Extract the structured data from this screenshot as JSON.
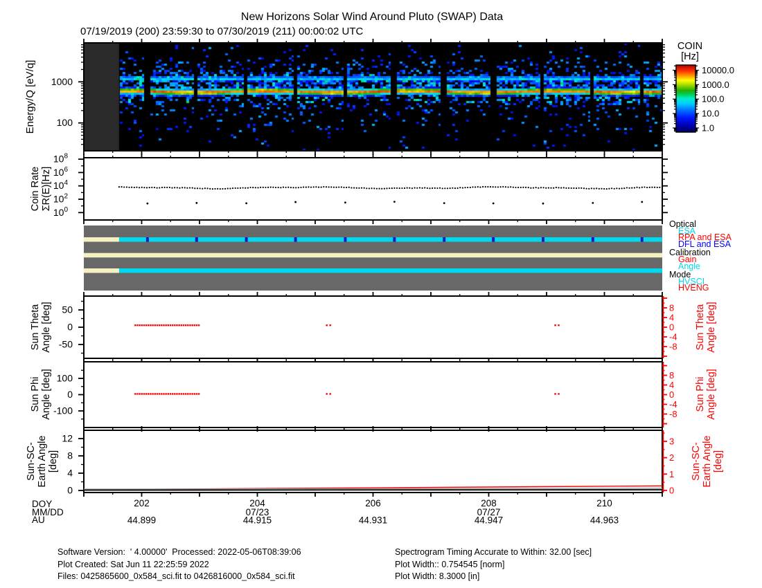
{
  "title": "New Horizons Solar Wind Around Pluto (SWAP) Data",
  "subtitle": "07/19/2019 (200) 23:59:30 to 07/30/2019 (211) 00:00:02 UTC",
  "colors": {
    "red": "#ff0000",
    "cyan": "#00d8ee",
    "blue": "#0000ff",
    "dark_blue_mark": "#1a1acc",
    "cream": "#f4f0bf",
    "panel_gray": "#686868",
    "nodata_gray": "#2a2a2a",
    "spec_bg": "#000000",
    "gray_line": "#999999"
  },
  "colorbar": {
    "title_line1": "COIN",
    "title_line2": "[Hz]",
    "scale": "log",
    "tick_labels": [
      "10000.0",
      "1000.0",
      "100.0",
      "10.0",
      "1.0"
    ],
    "tick_values": [
      10000,
      1000,
      100,
      10,
      1
    ]
  },
  "axes": {
    "energy": {
      "label": "Energy/Q [eV/q]",
      "scale": "log",
      "tick_labels": [
        "1000",
        "100"
      ],
      "tick_values": [
        1000,
        100
      ]
    },
    "coin": {
      "label_line1": "Coin Rate",
      "label_line2": "ΣR(E)[Hz]",
      "scale": "log",
      "tick_exponents": [
        8,
        6,
        4,
        2,
        0
      ]
    },
    "theta": {
      "label_line1": "Sun Theta",
      "label_line2": "Angle [deg]",
      "left_ticks": [
        50,
        0,
        -50
      ],
      "right_ticks": [
        8,
        4,
        0,
        -4,
        -8
      ]
    },
    "phi": {
      "label_line1": "Sun Phi",
      "label_line2": "Angle [deg]",
      "left_ticks": [
        100,
        0,
        -100
      ],
      "right_ticks": [
        8,
        4,
        0,
        -4,
        -8
      ]
    },
    "earth": {
      "label_line1": "Sun-SC-",
      "label_line2": "Earth Angle",
      "label_line3": "[deg]",
      "left_ticks": [
        12,
        8,
        4,
        0
      ],
      "right_ticks": [
        3,
        2,
        1,
        0
      ]
    },
    "x": {
      "row_doy": "DOY",
      "row_mmdd": "MM/DD",
      "row_au": "AU",
      "doy_range": [
        201.0,
        211.0
      ],
      "doy_ticks": [
        {
          "doy": 202,
          "label": "202",
          "mmdd": "",
          "au": "44.899"
        },
        {
          "doy": 204,
          "label": "204",
          "mmdd": "07/23",
          "au": "44.915"
        },
        {
          "doy": 206,
          "label": "206",
          "mmdd": "",
          "au": "44.931"
        },
        {
          "doy": 208,
          "label": "208",
          "mmdd": "07/27",
          "au": "44.947"
        },
        {
          "doy": 210,
          "label": "210",
          "mmdd": "",
          "au": "44.963"
        }
      ]
    }
  },
  "legend": {
    "groups": [
      {
        "label": "Optical",
        "color": "#000000",
        "items": [
          {
            "label": "ESA",
            "color": "#00d8ee"
          },
          {
            "label": "RPA and ESA",
            "color": "#ff0000"
          },
          {
            "label": "DFL and ESA",
            "color": "#0000ff"
          }
        ]
      },
      {
        "label": "Calibration",
        "color": "#000000",
        "items": [
          {
            "label": "Gain",
            "color": "#ff0000"
          },
          {
            "label": "Angle",
            "color": "#00d8ee"
          }
        ]
      },
      {
        "label": "Mode",
        "color": "#000000",
        "items": [
          {
            "label": "HVSCI",
            "color": "#00d8ee"
          },
          {
            "label": "HVENG",
            "color": "#ff0000"
          }
        ]
      }
    ]
  },
  "footer": {
    "left": [
      "Software Version:  ' 4.00000'  Processed: 2022-05-06T08:39:06",
      "Plot Created: Sat Jun 11 22:25:59 2022",
      "Files: 0425865600_0x584_sci.fit to 0426816000_0x584_sci.fit"
    ],
    "right": [
      "Spectrogram Timing Accurate to Within: 32.00 [sec]",
      "Plot Width:: 0.754545 [norm]",
      "Plot Width: 8.3000 [in]"
    ]
  },
  "chart_data": [
    {
      "type": "heatmap",
      "name": "energy_spectrogram",
      "ylabel": "Energy/Q [eV/q]",
      "y_scale": "log",
      "y_range_ev": [
        21,
        8900
      ],
      "x_range_doy": [
        201.0,
        211.0
      ],
      "data_start_doy": 201.61,
      "colorbar_label": "COIN [Hz]",
      "colorbar_range_hz": [
        1,
        10000
      ],
      "features": {
        "proton_beam": {
          "energy_ev": 575,
          "peak_rate_hz": 7500,
          "width_log10": 0.048
        },
        "alpha_band": {
          "energy_ev": 1190,
          "peak_rate_hz": 70,
          "width_log10": 0.038
        },
        "suprathermal_halo": {
          "center_ev": 790,
          "rate_hz": 6
        },
        "noise_floor_hz": 1,
        "gap_doys": [
          202.1,
          202.95,
          203.81,
          204.66,
          205.52,
          206.37,
          207.23,
          208.08,
          208.94,
          209.8,
          210.65
        ]
      }
    },
    {
      "type": "scatter",
      "name": "coin_rate",
      "ylabel": "Coin Rate ΣR(E)[Hz]",
      "y_scale": "log",
      "y_range_hz": [
        1,
        100000000
      ],
      "series": [
        {
          "name": "sum_rate",
          "doy_start": 201.61,
          "doy_end": 211.0,
          "n_points": 216,
          "mean_log10_hz": 3.72,
          "wiggle_log10": 0.12
        },
        {
          "name": "cal_low_rate",
          "log10_hz": 1.5,
          "doys": [
            202.1,
            202.95,
            203.81,
            204.66,
            205.52,
            206.37,
            207.23,
            208.08,
            208.94,
            209.8,
            210.65
          ]
        }
      ]
    },
    {
      "type": "timeline",
      "name": "instrument_status",
      "rows": [
        {
          "name": "Optical",
          "segments": [
            {
              "state": "none",
              "doy": [
                201.0,
                201.61
              ],
              "color_key": "cream"
            },
            {
              "state": "ESA",
              "doy": [
                201.61,
                211.0
              ],
              "color_key": "cyan"
            }
          ],
          "marks": {
            "state": "DFL and ESA",
            "color_key": "dark_blue_mark",
            "doys": [
              202.1,
              202.95,
              203.81,
              204.66,
              205.52,
              206.37,
              207.23,
              208.08,
              208.94,
              209.8,
              210.65
            ]
          }
        },
        {
          "name": "Calibration",
          "segments": [
            {
              "state": "none",
              "doy": [
                201.0,
                211.0
              ],
              "color_key": "cream"
            }
          ]
        },
        {
          "name": "Mode",
          "segments": [
            {
              "state": "none",
              "doy": [
                201.0,
                201.61
              ],
              "color_key": "cream"
            },
            {
              "state": "HVSCI",
              "doy": [
                201.61,
                211.0
              ],
              "color_key": "cyan"
            }
          ]
        }
      ]
    },
    {
      "type": "scatter",
      "name": "sun_theta_angle",
      "ylabel": "Sun Theta Angle [deg]",
      "y_range_left_deg": [
        -90,
        90
      ],
      "y_range_right_deg": [
        -12.9,
        12.9
      ],
      "marker_color": "#ff0000",
      "value_deg_right": 0.8,
      "cluster": {
        "doy_start": 201.89,
        "doy_end": 202.99,
        "n_points": 30
      },
      "pairs_doys": [
        [
          205.2,
          205.26
        ],
        [
          209.15,
          209.21
        ]
      ]
    },
    {
      "type": "scatter",
      "name": "sun_phi_angle",
      "ylabel": "Sun Phi Angle [deg]",
      "y_range_left_deg": [
        -190,
        190
      ],
      "y_range_right_deg": [
        -12.9,
        12.9
      ],
      "marker_color": "#ff0000",
      "value_deg_right": 0.3,
      "cluster": {
        "doy_start": 201.89,
        "doy_end": 202.99,
        "n_points": 30
      },
      "pairs_doys": [
        [
          205.2,
          205.26
        ],
        [
          209.15,
          209.21
        ]
      ]
    },
    {
      "type": "line",
      "name": "sun_sc_earth_angle",
      "ylabel": "Sun-SC-Earth Angle [deg]",
      "y_range_left_deg": [
        0,
        13.9
      ],
      "y_range_right_deg": [
        0,
        3.67
      ],
      "series": [
        {
          "name": "red_curve",
          "color": "#ff0000",
          "axis": "right",
          "points": [
            {
              "doy": 201.0,
              "deg": 0.05
            },
            {
              "doy": 211.0,
              "deg": 0.28
            }
          ]
        },
        {
          "name": "gray_curve",
          "color": "#999999",
          "axis": "left",
          "points": [
            {
              "doy": 201.0,
              "deg": 0.3
            },
            {
              "doy": 211.0,
              "deg": 0.5
            }
          ]
        },
        {
          "name": "black_curve",
          "color": "#000000",
          "axis": "left",
          "points": [
            {
              "doy": 201.0,
              "deg": 0.08
            },
            {
              "doy": 211.0,
              "deg": 0.16
            }
          ]
        }
      ]
    }
  ]
}
